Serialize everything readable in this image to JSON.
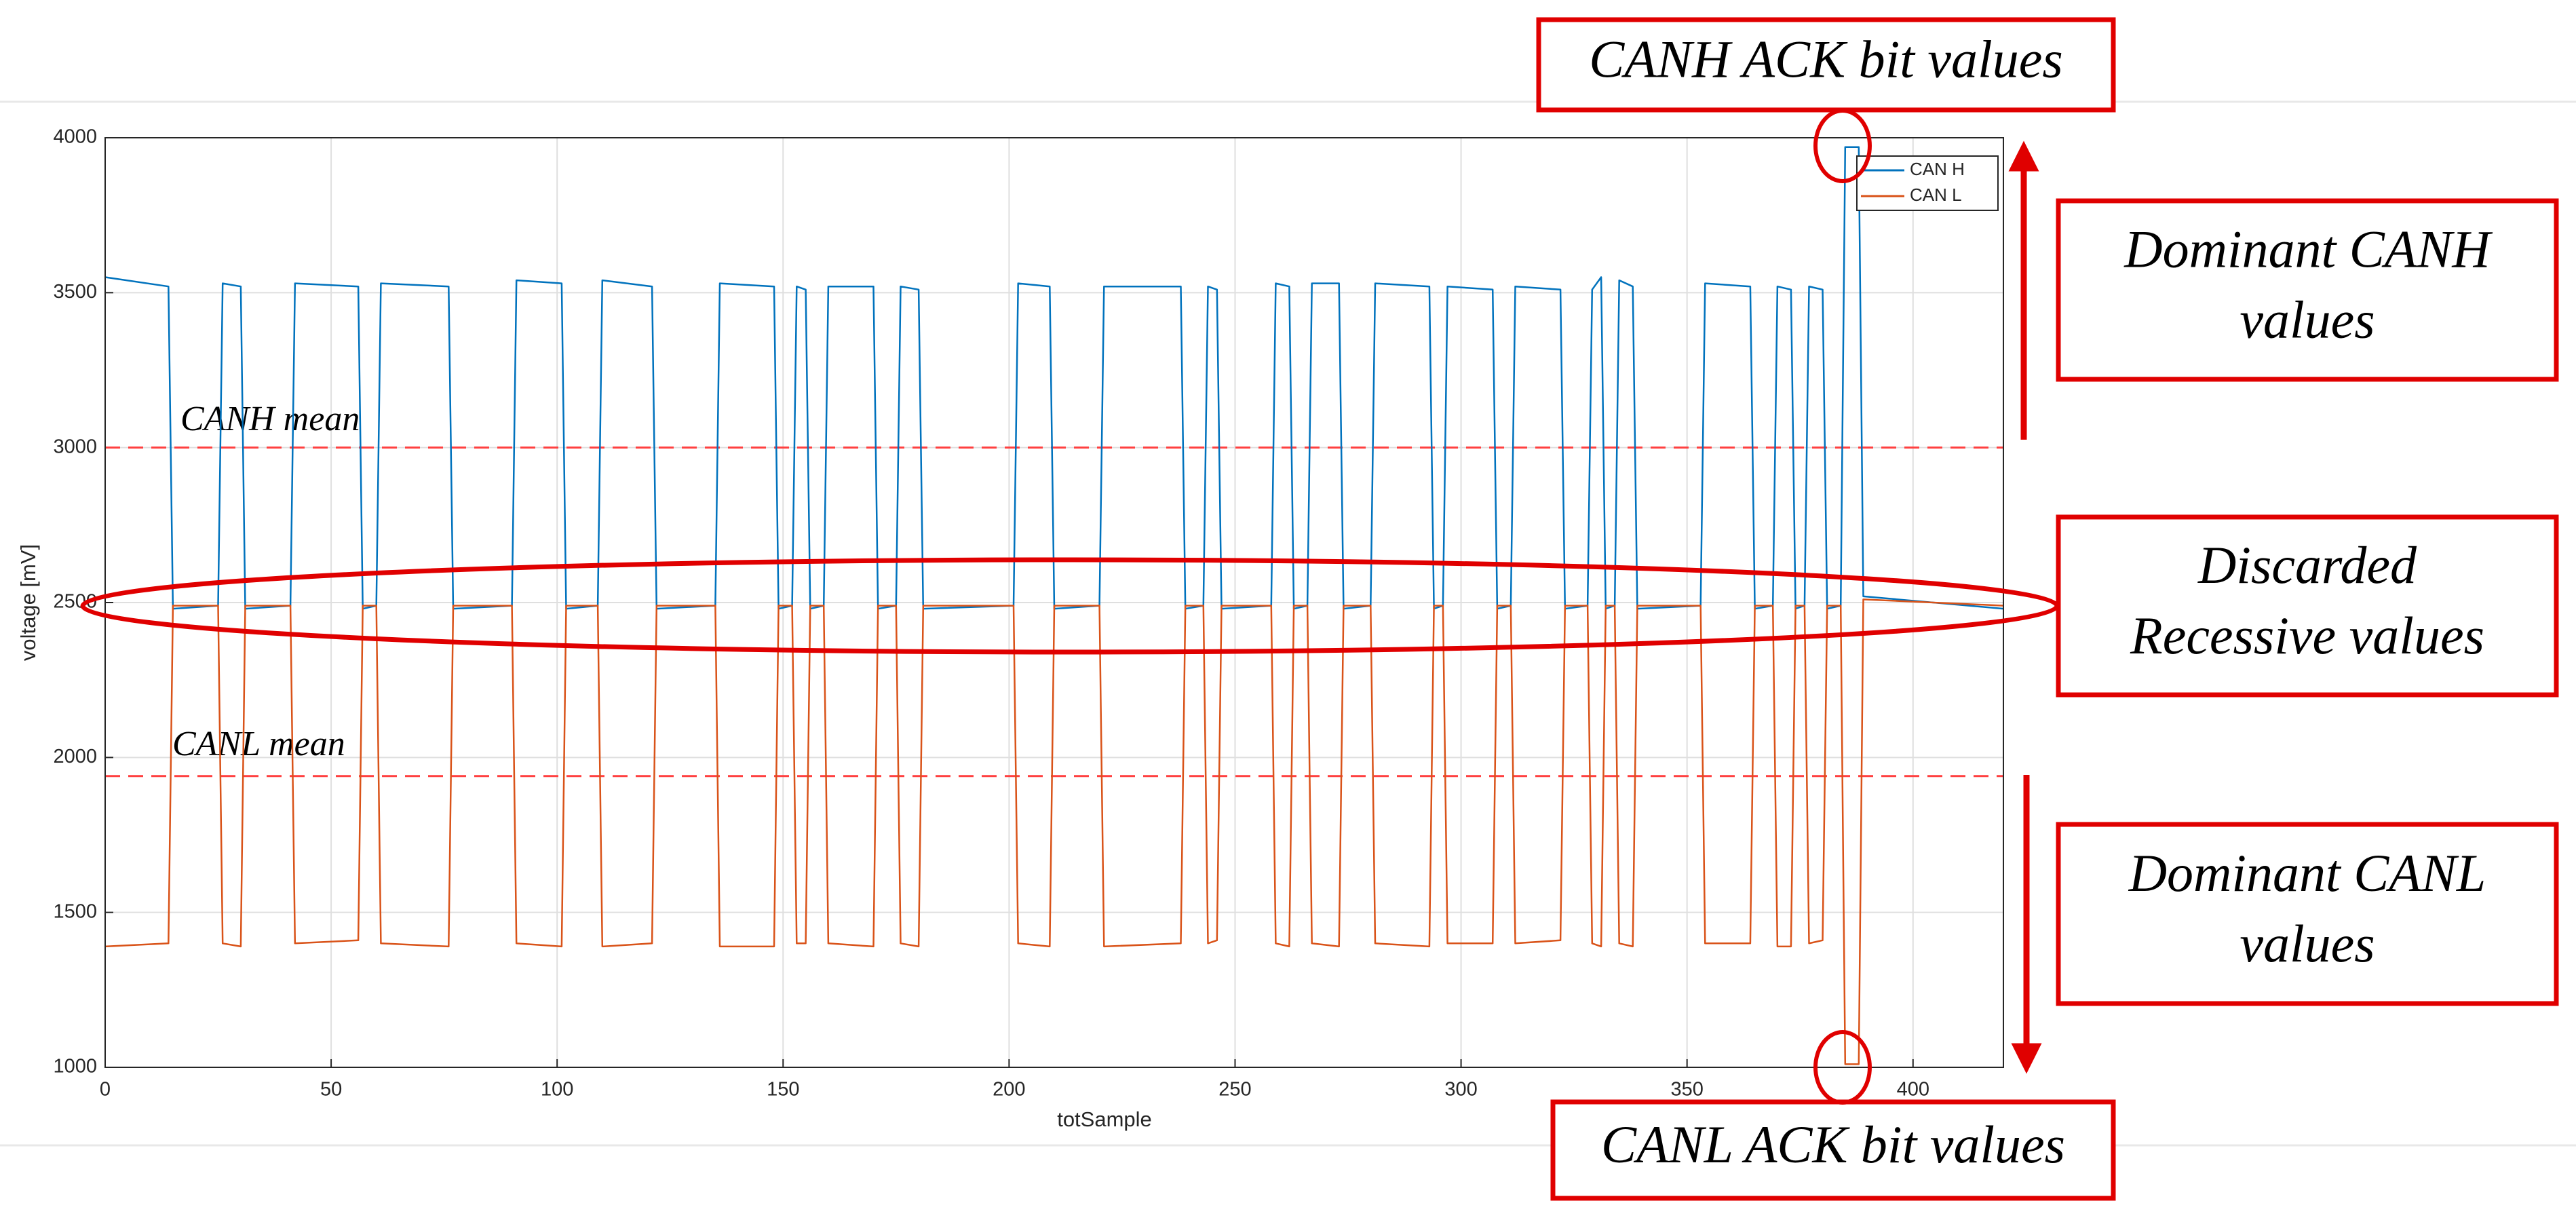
{
  "chart_data": {
    "type": "line",
    "xlabel": "totSample",
    "ylabel": "voltage [mV]",
    "xlim": [
      0,
      420
    ],
    "ylim": [
      1000,
      4000
    ],
    "xticks": [
      0,
      50,
      100,
      150,
      200,
      250,
      300,
      350,
      400
    ],
    "yticks": [
      1000,
      1500,
      2000,
      2500,
      3000,
      3500,
      4000
    ],
    "grid": true,
    "legend": "northeast",
    "x": [
      0,
      14,
      15,
      25,
      26,
      30,
      31,
      41,
      42,
      56,
      57,
      60,
      61,
      76,
      77,
      90,
      91,
      101,
      102,
      109,
      110,
      121,
      122,
      135,
      136,
      148,
      149,
      152,
      153,
      155,
      156,
      159,
      160,
      170,
      171,
      175,
      176,
      180,
      181,
      201,
      202,
      209,
      210,
      220,
      221,
      238,
      239,
      243,
      244,
      246,
      247,
      258,
      259,
      262,
      263,
      266,
      267,
      273,
      274,
      280,
      281,
      293,
      294,
      296,
      297,
      307,
      308,
      311,
      312,
      322,
      323,
      328,
      329,
      331,
      332,
      334,
      335,
      338,
      339,
      353,
      354,
      364,
      365,
      369,
      370,
      373,
      374,
      376,
      377,
      380,
      381,
      384,
      385,
      388,
      389,
      420
    ],
    "series": [
      {
        "name": "CAN H",
        "color": "#0072bd",
        "values": [
          3550,
          3520,
          2480,
          2490,
          3530,
          3520,
          2480,
          2490,
          3530,
          3520,
          2480,
          2490,
          3530,
          3520,
          2480,
          2490,
          3540,
          3530,
          2480,
          2490,
          3540,
          3520,
          2480,
          2490,
          3530,
          3520,
          2480,
          2490,
          3520,
          3510,
          2480,
          2490,
          3520,
          3520,
          2480,
          2490,
          3520,
          3510,
          2480,
          2490,
          3530,
          3520,
          2480,
          2490,
          3520,
          3520,
          2480,
          2490,
          3520,
          3510,
          2480,
          2490,
          3530,
          3520,
          2480,
          2490,
          3530,
          3530,
          2480,
          2490,
          3530,
          3520,
          2480,
          2490,
          3520,
          3510,
          2480,
          2490,
          3520,
          3510,
          2480,
          2490,
          3510,
          3550,
          2480,
          2490,
          3540,
          3520,
          2480,
          2490,
          3530,
          3520,
          2480,
          2490,
          3520,
          3510,
          2480,
          2490,
          3520,
          3510,
          2480,
          2490,
          3970,
          3970,
          2520,
          2480
        ]
      },
      {
        "name": "CAN L",
        "color": "#d95319",
        "values": [
          1390,
          1400,
          2490,
          2490,
          1400,
          1390,
          2490,
          2490,
          1400,
          1410,
          2490,
          2490,
          1400,
          1390,
          2490,
          2490,
          1400,
          1390,
          2490,
          2490,
          1390,
          1400,
          2490,
          2490,
          1390,
          1390,
          2490,
          2490,
          1400,
          1400,
          2490,
          2490,
          1400,
          1390,
          2490,
          2490,
          1400,
          1390,
          2490,
          2490,
          1400,
          1390,
          2490,
          2490,
          1390,
          1400,
          2490,
          2490,
          1400,
          1410,
          2490,
          2490,
          1400,
          1390,
          2490,
          2490,
          1400,
          1390,
          2490,
          2490,
          1400,
          1390,
          2490,
          2490,
          1400,
          1400,
          2490,
          2490,
          1400,
          1410,
          2490,
          2490,
          1400,
          1390,
          2490,
          2490,
          1400,
          1390,
          2490,
          2490,
          1400,
          1400,
          2490,
          2490,
          1390,
          1390,
          2490,
          2490,
          1400,
          1410,
          2490,
          2490,
          1010,
          1010,
          2510,
          2490
        ]
      }
    ],
    "reference_lines": [
      {
        "label": "CANH mean",
        "value": 3000,
        "color": "#ff4040"
      },
      {
        "label": "CANL mean",
        "value": 1940,
        "color": "#ff4040"
      }
    ],
    "annotations": [
      {
        "lines": [
          "CANH ACK bit values"
        ]
      },
      {
        "lines": [
          "Dominant CANH",
          "values"
        ]
      },
      {
        "lines": [
          "Discarded",
          "Recessive values"
        ]
      },
      {
        "lines": [
          "Dominant CANL",
          "values"
        ]
      },
      {
        "lines": [
          "CANL ACK bit values"
        ]
      }
    ]
  }
}
